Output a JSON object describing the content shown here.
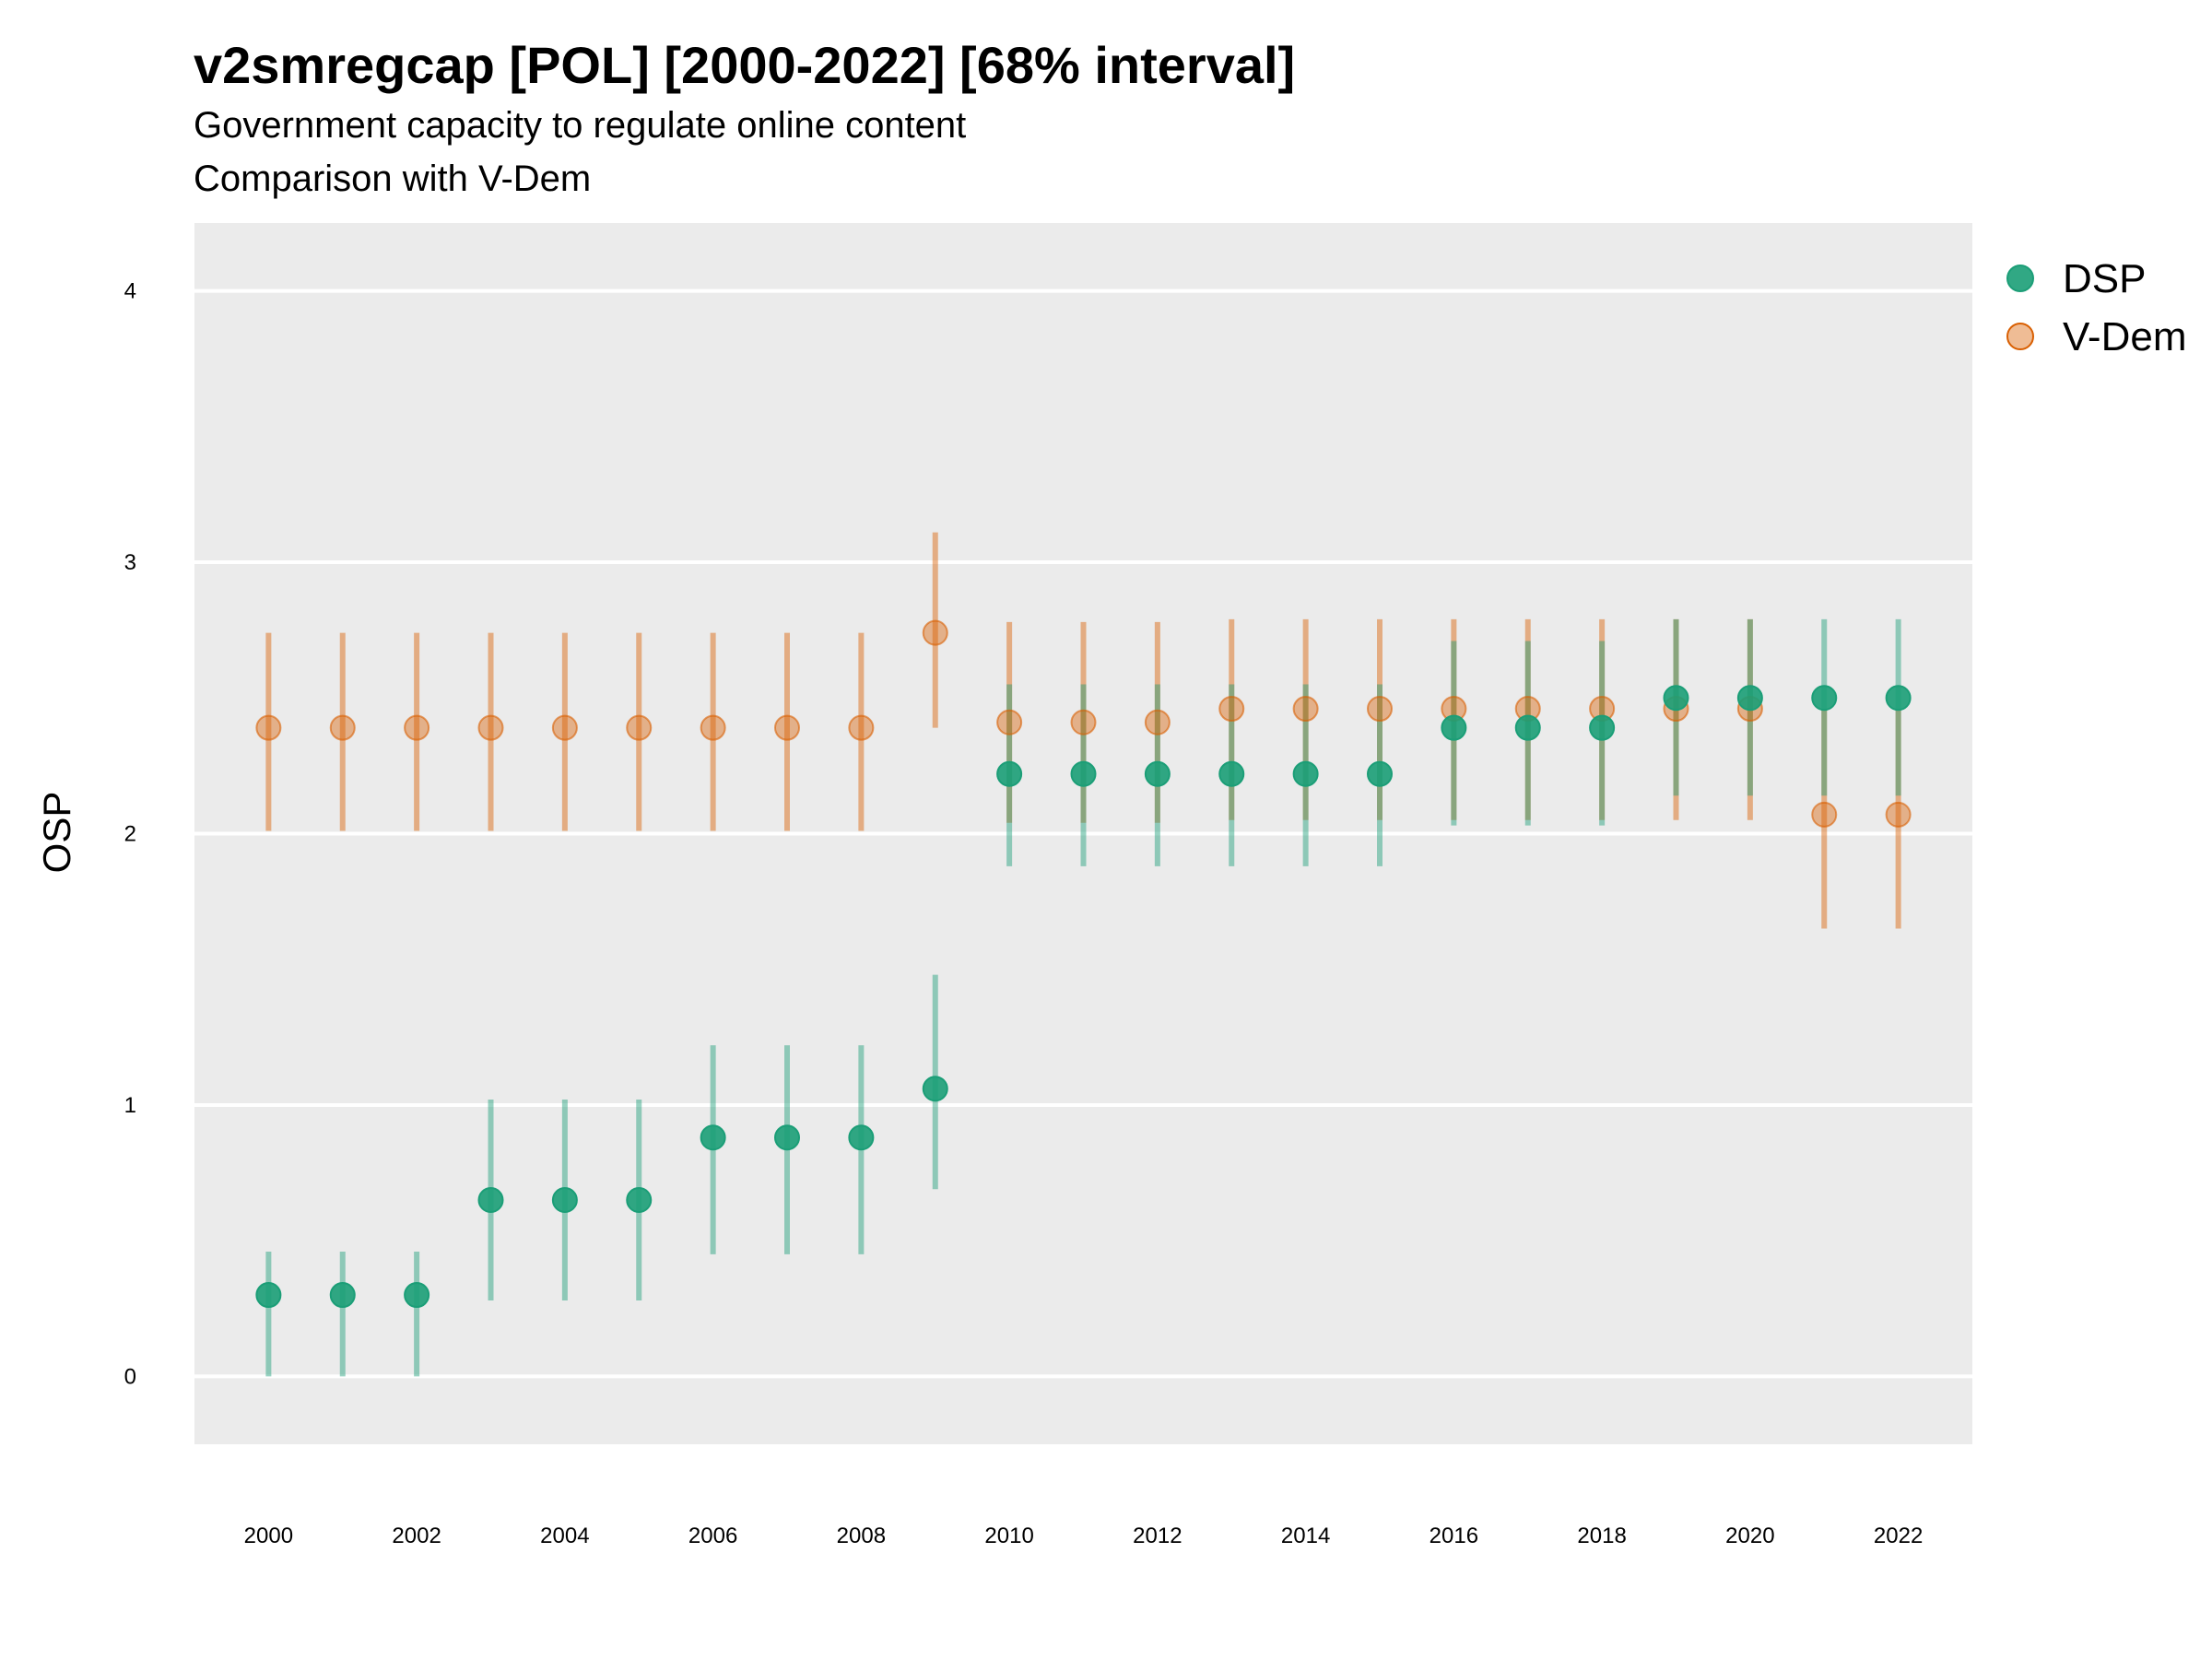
{
  "chart_data": {
    "type": "scatter",
    "title": "v2smregcap [POL] [2000-2022] [68% interval]",
    "subtitle": "Government capacity to regulate online content",
    "caption": "Comparison with V-Dem",
    "ylabel": "OSP",
    "xlabel": "",
    "ylim": [
      -0.25,
      4.25
    ],
    "xlim": [
      1999.0,
      2023.0
    ],
    "y_ticks": [
      0,
      1,
      2,
      3,
      4
    ],
    "x_ticks": [
      2000,
      2002,
      2004,
      2006,
      2008,
      2010,
      2012,
      2014,
      2016,
      2018,
      2020,
      2022
    ],
    "grid": true,
    "legend_position": "right",
    "x": [
      2000,
      2001,
      2002,
      2003,
      2004,
      2005,
      2006,
      2007,
      2008,
      2009,
      2010,
      2011,
      2012,
      2013,
      2014,
      2015,
      2016,
      2017,
      2018,
      2019,
      2020,
      2021,
      2022
    ],
    "series": [
      {
        "name": "DSP",
        "color": "#1b9e77",
        "values": [
          0.3,
          0.3,
          0.3,
          0.65,
          0.65,
          0.65,
          0.88,
          0.88,
          0.88,
          1.06,
          2.22,
          2.22,
          2.22,
          2.22,
          2.22,
          2.22,
          2.39,
          2.39,
          2.39,
          2.5,
          2.5,
          2.5,
          2.5
        ],
        "lower": [
          0.0,
          0.0,
          0.0,
          0.28,
          0.28,
          0.28,
          0.45,
          0.45,
          0.45,
          0.69,
          1.88,
          1.88,
          1.88,
          1.88,
          1.88,
          1.88,
          2.03,
          2.03,
          2.03,
          2.14,
          2.14,
          2.14,
          2.14
        ],
        "upper": [
          0.46,
          0.46,
          0.46,
          1.02,
          1.02,
          1.02,
          1.22,
          1.22,
          1.22,
          1.48,
          2.55,
          2.55,
          2.55,
          2.55,
          2.55,
          2.55,
          2.71,
          2.71,
          2.71,
          2.79,
          2.79,
          2.79,
          2.79
        ]
      },
      {
        "name": "V-Dem",
        "color": "#d95f02",
        "values": [
          2.39,
          2.39,
          2.39,
          2.39,
          2.39,
          2.39,
          2.39,
          2.39,
          2.39,
          2.74,
          2.41,
          2.41,
          2.41,
          2.46,
          2.46,
          2.46,
          2.46,
          2.46,
          2.46,
          2.46,
          2.46,
          2.07,
          2.07
        ],
        "lower": [
          2.01,
          2.01,
          2.01,
          2.01,
          2.01,
          2.01,
          2.01,
          2.01,
          2.01,
          2.39,
          2.04,
          2.04,
          2.04,
          2.05,
          2.05,
          2.05,
          2.05,
          2.05,
          2.05,
          2.05,
          2.05,
          1.65,
          1.65
        ],
        "upper": [
          2.74,
          2.74,
          2.74,
          2.74,
          2.74,
          2.74,
          2.74,
          2.74,
          2.74,
          3.11,
          2.78,
          2.78,
          2.78,
          2.79,
          2.79,
          2.79,
          2.79,
          2.79,
          2.79,
          2.79,
          2.79,
          2.46,
          2.46
        ]
      }
    ]
  }
}
